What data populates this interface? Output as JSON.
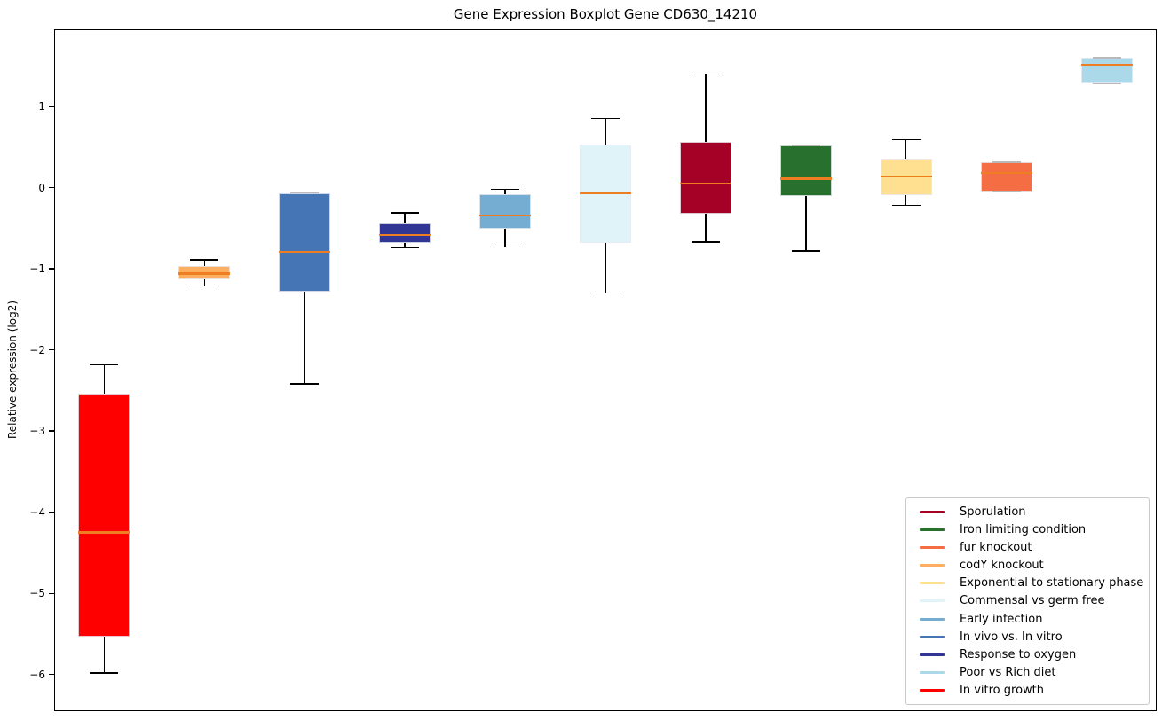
{
  "figure": {
    "title": "Gene Expression Boxplot Gene CD630_14210",
    "ylabel": "Relative expression (log2)"
  },
  "chart_data": {
    "type": "boxplot",
    "title": "Gene Expression Boxplot Gene CD630_14210",
    "xlabel": "",
    "ylabel": "Relative expression (log2)",
    "ylim": [
      -6.45,
      1.95
    ],
    "yticks": [
      1,
      0,
      -1,
      -2,
      -3,
      -4,
      -5,
      -6
    ],
    "grid": false,
    "legend_position": "lower right",
    "median_color": "#ef7e23",
    "series": [
      {
        "label": "In vitro growth",
        "color": "#ff0000",
        "whisker_low": -5.98,
        "q1": -5.53,
        "median": -4.25,
        "q3": -2.54,
        "whisker_high": -2.18
      },
      {
        "label": "codY knockout",
        "color": "#fdae61",
        "whisker_low": -1.21,
        "q1": -1.13,
        "median": -1.06,
        "q3": -0.97,
        "whisker_high": -0.89
      },
      {
        "label": "In vivo vs. In vitro",
        "color": "#4575b4",
        "whisker_low": -2.42,
        "q1": -1.28,
        "median": -0.79,
        "q3": -0.07,
        "whisker_high": -0.06
      },
      {
        "label": "Response to oxygen",
        "color": "#313695",
        "whisker_low": -0.74,
        "q1": -0.68,
        "median": -0.58,
        "q3": -0.44,
        "whisker_high": -0.31
      },
      {
        "label": "Early infection",
        "color": "#74add1",
        "whisker_low": -0.73,
        "q1": -0.51,
        "median": -0.34,
        "q3": -0.08,
        "whisker_high": -0.02
      },
      {
        "label": "Commensal vs germ free",
        "color": "#e0f3f8",
        "whisker_low": -1.3,
        "q1": -0.68,
        "median": -0.07,
        "q3": 0.53,
        "whisker_high": 0.85
      },
      {
        "label": "Sporulation",
        "color": "#a50026",
        "whisker_low": -0.67,
        "q1": -0.32,
        "median": 0.05,
        "q3": 0.56,
        "whisker_high": 1.4
      },
      {
        "label": "Iron limiting condition",
        "color": "#27702e",
        "whisker_low": -0.78,
        "q1": -0.1,
        "median": 0.11,
        "q3": 0.52,
        "whisker_high": 0.52
      },
      {
        "label": "Exponential to stationary phase",
        "color": "#fee090",
        "whisker_low": -0.22,
        "q1": -0.09,
        "median": 0.14,
        "q3": 0.35,
        "whisker_high": 0.59
      },
      {
        "label": "fur knockout",
        "color": "#f46d43",
        "whisker_low": -0.05,
        "q1": -0.05,
        "median": 0.18,
        "q3": 0.31,
        "whisker_high": 0.31
      },
      {
        "label": "Poor vs Rich diet",
        "color": "#abd9e9",
        "whisker_low": 1.28,
        "q1": 1.28,
        "median": 1.51,
        "q3": 1.6,
        "whisker_high": 1.6
      }
    ],
    "legend": [
      {
        "label": "Sporulation",
        "color": "#a50026"
      },
      {
        "label": "Iron limiting condition",
        "color": "#27702e"
      },
      {
        "label": "fur knockout",
        "color": "#f46d43"
      },
      {
        "label": "codY knockout",
        "color": "#fdae61"
      },
      {
        "label": "Exponential to stationary phase",
        "color": "#fee090"
      },
      {
        "label": "Commensal vs germ free",
        "color": "#e0f3f8"
      },
      {
        "label": "Early infection",
        "color": "#74add1"
      },
      {
        "label": "In vivo vs. In vitro",
        "color": "#4575b4"
      },
      {
        "label": "Response to oxygen",
        "color": "#313695"
      },
      {
        "label": "Poor vs Rich diet",
        "color": "#abd9e9"
      },
      {
        "label": "In vitro growth",
        "color": "#ff0000"
      }
    ]
  }
}
